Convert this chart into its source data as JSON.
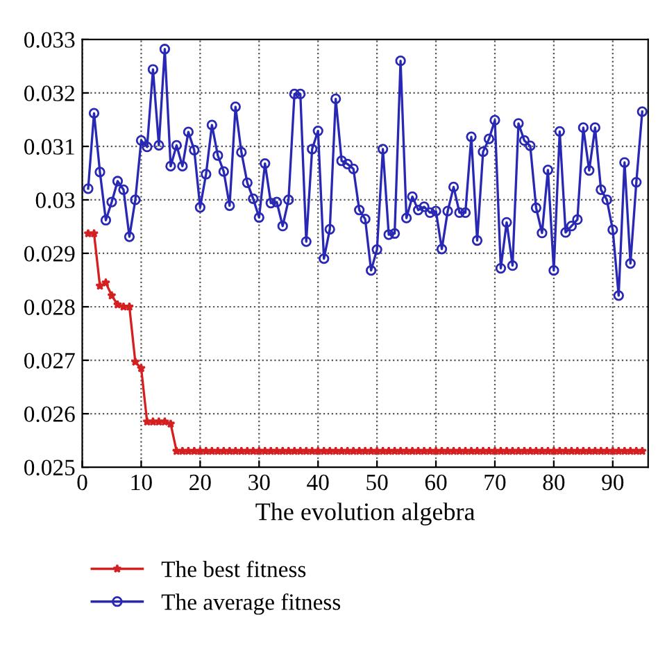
{
  "chart_data": {
    "type": "line",
    "xlabel": "The evolution algebra",
    "x": [
      1,
      2,
      3,
      4,
      5,
      6,
      7,
      8,
      9,
      10,
      11,
      12,
      13,
      14,
      15,
      16,
      17,
      18,
      19,
      20,
      21,
      22,
      23,
      24,
      25,
      26,
      27,
      28,
      29,
      30,
      31,
      32,
      33,
      34,
      35,
      36,
      37,
      38,
      39,
      40,
      41,
      42,
      43,
      44,
      45,
      46,
      47,
      48,
      49,
      50,
      51,
      52,
      53,
      54,
      55,
      56,
      57,
      58,
      59,
      60,
      61,
      62,
      63,
      64,
      65,
      66,
      67,
      68,
      69,
      70,
      71,
      72,
      73,
      74,
      75,
      76,
      77,
      78,
      79,
      80,
      81,
      82,
      83,
      84,
      85,
      86,
      87,
      88,
      89,
      90,
      91,
      92,
      93,
      94,
      95
    ],
    "series": [
      {
        "name": "The best fitness",
        "color": "#d42020",
        "marker": "star",
        "values": [
          0.02937,
          0.02937,
          0.02839,
          0.02845,
          0.02821,
          0.02804,
          0.028,
          0.028,
          0.02697,
          0.02685,
          0.02585,
          0.02585,
          0.02585,
          0.02585,
          0.02581,
          0.0253,
          0.0253,
          0.0253,
          0.0253,
          0.0253,
          0.0253,
          0.0253,
          0.0253,
          0.0253,
          0.0253,
          0.0253,
          0.0253,
          0.0253,
          0.0253,
          0.0253,
          0.0253,
          0.0253,
          0.0253,
          0.0253,
          0.0253,
          0.0253,
          0.0253,
          0.0253,
          0.0253,
          0.0253,
          0.0253,
          0.0253,
          0.0253,
          0.0253,
          0.0253,
          0.0253,
          0.0253,
          0.0253,
          0.0253,
          0.0253,
          0.0253,
          0.0253,
          0.0253,
          0.0253,
          0.0253,
          0.0253,
          0.0253,
          0.0253,
          0.0253,
          0.0253,
          0.0253,
          0.0253,
          0.0253,
          0.0253,
          0.0253,
          0.0253,
          0.0253,
          0.0253,
          0.0253,
          0.0253,
          0.0253,
          0.0253,
          0.0253,
          0.0253,
          0.0253,
          0.0253,
          0.0253,
          0.0253,
          0.0253,
          0.0253,
          0.0253,
          0.0253,
          0.0253,
          0.0253,
          0.0253,
          0.0253,
          0.0253,
          0.0253,
          0.0253,
          0.0253,
          0.0253,
          0.0253,
          0.0253,
          0.0253,
          0.0253
        ]
      },
      {
        "name": "The average fitness",
        "color": "#2828b4",
        "marker": "circle",
        "values": [
          0.03021,
          0.03162,
          0.03052,
          0.02962,
          0.02996,
          0.03035,
          0.03019,
          0.02931,
          0.03,
          0.03111,
          0.03099,
          0.03244,
          0.03102,
          0.03282,
          0.03063,
          0.03102,
          0.03063,
          0.03127,
          0.03093,
          0.02986,
          0.03048,
          0.0314,
          0.03083,
          0.03053,
          0.02989,
          0.03174,
          0.03089,
          0.03032,
          0.03002,
          0.02967,
          0.03068,
          0.02994,
          0.02996,
          0.02951,
          0.03,
          0.03198,
          0.03198,
          0.02922,
          0.03095,
          0.03129,
          0.0289,
          0.02945,
          0.03189,
          0.03073,
          0.03067,
          0.03058,
          0.02981,
          0.02964,
          0.02868,
          0.02907,
          0.03095,
          0.02935,
          0.02937,
          0.0326,
          0.02966,
          0.03006,
          0.02981,
          0.02987,
          0.02976,
          0.02979,
          0.02908,
          0.02979,
          0.03024,
          0.02976,
          0.02976,
          0.03118,
          0.02924,
          0.0309,
          0.03114,
          0.03149,
          0.02872,
          0.02958,
          0.02877,
          0.03143,
          0.03111,
          0.03101,
          0.02985,
          0.02938,
          0.03056,
          0.02868,
          0.03128,
          0.02939,
          0.02951,
          0.02963,
          0.03135,
          0.03055,
          0.03135,
          0.03019,
          0.03,
          0.02944,
          0.02821,
          0.0307,
          0.02881,
          0.03033,
          0.03165
        ]
      }
    ],
    "xlim": [
      0,
      96
    ],
    "xticks": [
      0,
      10,
      20,
      30,
      40,
      50,
      60,
      70,
      80,
      90
    ],
    "ylim": [
      0.025,
      0.033
    ],
    "yticks": [
      {
        "value": 0.025,
        "label": "0.025"
      },
      {
        "value": 0.026,
        "label": "0.026"
      },
      {
        "value": 0.027,
        "label": "0.027"
      },
      {
        "value": 0.028,
        "label": "0.028"
      },
      {
        "value": 0.029,
        "label": "0.029"
      },
      {
        "value": 0.03,
        "label": "0.03"
      },
      {
        "value": 0.031,
        "label": "0.031"
      },
      {
        "value": 0.032,
        "label": "0.032"
      },
      {
        "value": 0.033,
        "label": "0.033"
      }
    ],
    "grid": true,
    "legend": "bottom left",
    "line_style": "solid"
  }
}
